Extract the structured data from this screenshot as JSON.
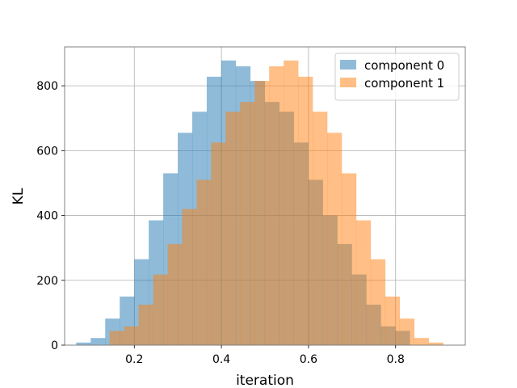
{
  "chart_data": {
    "type": "bar",
    "subtype": "histogram",
    "title": "",
    "xlabel": "iteration",
    "ylabel": "KL",
    "xlim": [
      0.04,
      0.96
    ],
    "ylim": [
      0,
      920
    ],
    "xticks": [
      0.2,
      0.4,
      0.6,
      0.8
    ],
    "xtick_labels": [
      "0.2",
      "0.4",
      "0.6",
      "0.8"
    ],
    "yticks": [
      0,
      200,
      400,
      600,
      800
    ],
    "ytick_labels": [
      "0",
      "200",
      "400",
      "600",
      "800"
    ],
    "grid": true,
    "legend_position": "top-right",
    "series": [
      {
        "name": "component 0",
        "color": "#1f77b4",
        "alpha": 0.5,
        "bin_start": 0.0666,
        "bin_width": 0.0333,
        "values": [
          8,
          22,
          82,
          150,
          265,
          385,
          530,
          655,
          720,
          828,
          878,
          860,
          815,
          750,
          720,
          625,
          510,
          400,
          312,
          218,
          125,
          58,
          44,
          0,
          0
        ]
      },
      {
        "name": "component 1",
        "color": "#ff7f0e",
        "alpha": 0.5,
        "bin_start": 0.1433,
        "bin_width": 0.0333,
        "values": [
          44,
          58,
          125,
          218,
          312,
          420,
          510,
          625,
          720,
          750,
          815,
          860,
          878,
          828,
          720,
          655,
          530,
          385,
          265,
          150,
          82,
          22,
          8
        ]
      }
    ]
  }
}
